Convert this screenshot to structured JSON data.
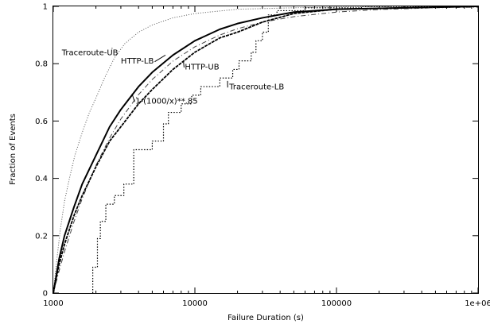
{
  "chart_data": {
    "type": "line",
    "title": "",
    "xlabel": "Failure Duration (s)",
    "ylabel": "Fraction of Events",
    "xscale": "log",
    "xlim": [
      1000,
      1000000
    ],
    "ylim": [
      0,
      1
    ],
    "grid": false,
    "legend": "none (series labelled by inline annotations)",
    "x_ticks": [
      {
        "value": 1000,
        "label": "1000"
      },
      {
        "value": 10000,
        "label": "10000"
      },
      {
        "value": 100000,
        "label": "100000"
      },
      {
        "value": 1000000,
        "label": "1e+06"
      }
    ],
    "y_ticks": [
      {
        "value": 0,
        "label": "0"
      },
      {
        "value": 0.2,
        "label": "0.2"
      },
      {
        "value": 0.4,
        "label": "0.4"
      },
      {
        "value": 0.6,
        "label": "0.6"
      },
      {
        "value": 0.8,
        "label": "0.8"
      },
      {
        "value": 1,
        "label": "1"
      }
    ],
    "series": [
      {
        "name": "Traceroute-UB",
        "style": "dotted-thin",
        "step": false,
        "label_text": "Traceroute-UB",
        "label_anchor": [
          2600,
          0.855
        ],
        "label_at": [
          1150,
          0.83
        ],
        "points": [
          [
            1000,
            0
          ],
          [
            1050,
            0.1
          ],
          [
            1120,
            0.22
          ],
          [
            1200,
            0.32
          ],
          [
            1300,
            0.4
          ],
          [
            1420,
            0.48
          ],
          [
            1600,
            0.56
          ],
          [
            1800,
            0.63
          ],
          [
            2000,
            0.68
          ],
          [
            2300,
            0.75
          ],
          [
            2700,
            0.82
          ],
          [
            3200,
            0.87
          ],
          [
            4000,
            0.91
          ],
          [
            5000,
            0.935
          ],
          [
            7000,
            0.96
          ],
          [
            10000,
            0.975
          ],
          [
            20000,
            0.99
          ],
          [
            50000,
            0.995
          ],
          [
            100000,
            0.998
          ],
          [
            1000000,
            1
          ]
        ]
      },
      {
        "name": "HTTP-LB",
        "style": "solid-thick",
        "step": false,
        "label_text": "HTTP-LB",
        "label_anchor": [
          6200,
          0.83
        ],
        "label_at": [
          3000,
          0.8
        ],
        "points": [
          [
            1000,
            0
          ],
          [
            1100,
            0.12
          ],
          [
            1200,
            0.2
          ],
          [
            1400,
            0.3
          ],
          [
            1600,
            0.38
          ],
          [
            2000,
            0.48
          ],
          [
            2500,
            0.58
          ],
          [
            3000,
            0.64
          ],
          [
            4000,
            0.72
          ],
          [
            5000,
            0.77
          ],
          [
            7000,
            0.83
          ],
          [
            10000,
            0.88
          ],
          [
            15000,
            0.92
          ],
          [
            20000,
            0.94
          ],
          [
            30000,
            0.96
          ],
          [
            50000,
            0.98
          ],
          [
            100000,
            0.99
          ],
          [
            1000000,
            1
          ]
        ]
      },
      {
        "name": "1-(1000/x)**.85",
        "style": "dash-dot",
        "step": false,
        "label_text": "1-(1000/x)**.85",
        "label_anchor": [
          3600,
          0.695
        ],
        "label_at": [
          3800,
          0.66
        ],
        "formula": "1-(1000/x)**.85",
        "points": [
          [
            1000,
            0
          ],
          [
            1100,
            0.078
          ],
          [
            1200,
            0.144
          ],
          [
            1400,
            0.249
          ],
          [
            1600,
            0.329
          ],
          [
            2000,
            0.445
          ],
          [
            2500,
            0.541
          ],
          [
            3000,
            0.607
          ],
          [
            4000,
            0.692
          ],
          [
            5000,
            0.745
          ],
          [
            7000,
            0.809
          ],
          [
            10000,
            0.859
          ],
          [
            15000,
            0.9
          ],
          [
            20000,
            0.922
          ],
          [
            30000,
            0.945
          ],
          [
            50000,
            0.964
          ],
          [
            100000,
            0.98
          ],
          [
            200000,
            0.989
          ],
          [
            500000,
            0.995
          ],
          [
            1000000,
            0.997
          ]
        ]
      },
      {
        "name": "HTTP-UB",
        "style": "solid-dotted",
        "step": false,
        "label_text": "HTTP-UB",
        "label_anchor": [
          8300,
          0.81
        ],
        "label_at": [
          8500,
          0.78
        ],
        "points": [
          [
            1000,
            0
          ],
          [
            1100,
            0.1
          ],
          [
            1200,
            0.17
          ],
          [
            1400,
            0.27
          ],
          [
            1600,
            0.34
          ],
          [
            2000,
            0.44
          ],
          [
            2500,
            0.53
          ],
          [
            3000,
            0.58
          ],
          [
            4000,
            0.66
          ],
          [
            5000,
            0.71
          ],
          [
            7000,
            0.78
          ],
          [
            10000,
            0.84
          ],
          [
            15000,
            0.89
          ],
          [
            20000,
            0.91
          ],
          [
            30000,
            0.945
          ],
          [
            50000,
            0.975
          ],
          [
            100000,
            0.99
          ],
          [
            1000000,
            1
          ]
        ]
      },
      {
        "name": "Traceroute-LB",
        "style": "dotted-thick",
        "step": true,
        "label_text": "Traceroute-LB",
        "label_anchor": [
          17000,
          0.74
        ],
        "label_at": [
          17500,
          0.71
        ],
        "points": [
          [
            1900,
            0
          ],
          [
            1900,
            0.09
          ],
          [
            2050,
            0.09
          ],
          [
            2050,
            0.19
          ],
          [
            2150,
            0.19
          ],
          [
            2150,
            0.25
          ],
          [
            2350,
            0.25
          ],
          [
            2350,
            0.31
          ],
          [
            2700,
            0.31
          ],
          [
            2700,
            0.34
          ],
          [
            3150,
            0.34
          ],
          [
            3150,
            0.38
          ],
          [
            3700,
            0.38
          ],
          [
            3700,
            0.5
          ],
          [
            5000,
            0.5
          ],
          [
            5000,
            0.53
          ],
          [
            6000,
            0.53
          ],
          [
            6000,
            0.59
          ],
          [
            6500,
            0.59
          ],
          [
            6500,
            0.63
          ],
          [
            8000,
            0.63
          ],
          [
            8000,
            0.66
          ],
          [
            9500,
            0.66
          ],
          [
            9500,
            0.69
          ],
          [
            11000,
            0.69
          ],
          [
            11000,
            0.72
          ],
          [
            15000,
            0.72
          ],
          [
            15000,
            0.75
          ],
          [
            18500,
            0.75
          ],
          [
            18500,
            0.78
          ],
          [
            20500,
            0.78
          ],
          [
            20500,
            0.81
          ],
          [
            25000,
            0.81
          ],
          [
            25000,
            0.84
          ],
          [
            27000,
            0.84
          ],
          [
            27000,
            0.88
          ],
          [
            30000,
            0.88
          ],
          [
            30000,
            0.91
          ],
          [
            33000,
            0.91
          ],
          [
            33000,
            0.97
          ],
          [
            38000,
            0.97
          ],
          [
            38000,
            0.985
          ],
          [
            60000,
            0.985
          ],
          [
            60000,
            0.995
          ],
          [
            150000,
            0.995
          ],
          [
            150000,
            1
          ],
          [
            1000000,
            1
          ]
        ]
      }
    ]
  }
}
